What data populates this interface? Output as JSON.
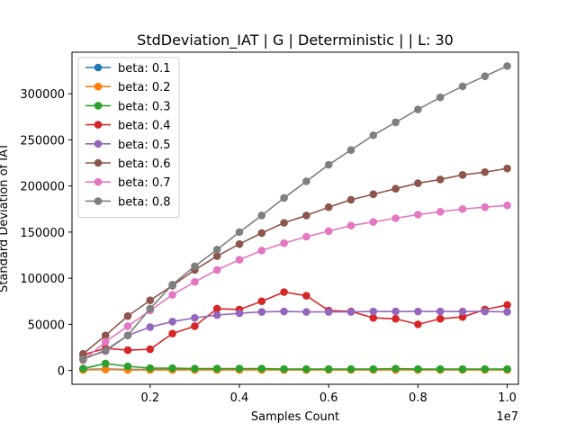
{
  "chart_data": {
    "type": "line",
    "title": "StdDeviation_IAT  | G | Deterministic |  | L: 30",
    "xlabel": "Samples Count",
    "ylabel": "Standard Deviation of IAT",
    "x_offset_label": "1e7",
    "xlim": [
      250000,
      10250000
    ],
    "ylim": [
      -15000,
      345000
    ],
    "xticks": [
      2000000,
      4000000,
      6000000,
      8000000,
      10000000
    ],
    "xtick_labels": [
      "0.2",
      "0.4",
      "0.6",
      "0.8",
      "1.0"
    ],
    "yticks": [
      0,
      50000,
      100000,
      150000,
      200000,
      250000,
      300000
    ],
    "ytick_labels": [
      "0",
      "50000",
      "100000",
      "150000",
      "200000",
      "250000",
      "300000"
    ],
    "grid": false,
    "legend_position": "top-left",
    "x": [
      500000,
      1000000,
      1500000,
      2000000,
      2500000,
      3000000,
      3500000,
      4000000,
      4500000,
      5000000,
      5500000,
      6000000,
      6500000,
      7000000,
      7500000,
      8000000,
      8500000,
      9000000,
      9500000,
      10000000
    ],
    "series": [
      {
        "name": "beta: 0.1",
        "color": "#1f77b4",
        "values": [
          1000,
          1500,
          1000,
          1000,
          1000,
          1000,
          1000,
          1000,
          1000,
          1000,
          1000,
          1000,
          1000,
          1000,
          1000,
          1000,
          1000,
          1000,
          1000,
          1000
        ]
      },
      {
        "name": "beta: 0.2",
        "color": "#ff7f0e",
        "values": [
          500,
          1000,
          500,
          500,
          500,
          500,
          500,
          500,
          500,
          500,
          500,
          500,
          500,
          500,
          500,
          500,
          500,
          500,
          500,
          500
        ]
      },
      {
        "name": "beta: 0.3",
        "color": "#2ca02c",
        "values": [
          2000,
          7500,
          4500,
          2500,
          2500,
          2000,
          2000,
          2000,
          2000,
          1500,
          1500,
          1500,
          1500,
          1500,
          2000,
          1500,
          1500,
          1500,
          1500,
          1500
        ]
      },
      {
        "name": "beta: 0.4",
        "color": "#d62728",
        "values": [
          17000,
          24000,
          22000,
          23000,
          40000,
          48000,
          67000,
          66000,
          75000,
          85000,
          81000,
          65000,
          64000,
          57000,
          56000,
          50000,
          56000,
          58000,
          66000,
          71000
        ]
      },
      {
        "name": "beta: 0.5",
        "color": "#9467bd",
        "values": [
          13000,
          21000,
          38000,
          47000,
          53000,
          57000,
          60000,
          62000,
          63500,
          64000,
          63500,
          63500,
          63500,
          64000,
          64000,
          64000,
          64000,
          64000,
          64000,
          63500
        ]
      },
      {
        "name": "beta: 0.6",
        "color": "#8c564b",
        "values": [
          18000,
          38000,
          59000,
          76000,
          92000,
          109000,
          124000,
          137000,
          149000,
          160000,
          168000,
          177000,
          185000,
          191000,
          197000,
          203000,
          207000,
          212000,
          215000,
          219000
        ]
      },
      {
        "name": "beta: 0.7",
        "color": "#e377c2",
        "values": [
          11000,
          31000,
          48000,
          65000,
          82000,
          96000,
          109000,
          120000,
          130000,
          138000,
          145000,
          151000,
          157000,
          161000,
          165000,
          169000,
          172000,
          175000,
          177000,
          179000
        ]
      },
      {
        "name": "beta: 0.8",
        "color": "#7f7f7f",
        "values": [
          12000,
          22000,
          38000,
          67000,
          93000,
          113000,
          131000,
          150000,
          168000,
          187000,
          205000,
          223000,
          239000,
          255000,
          269000,
          283000,
          296000,
          308000,
          319000,
          330000
        ]
      }
    ]
  }
}
